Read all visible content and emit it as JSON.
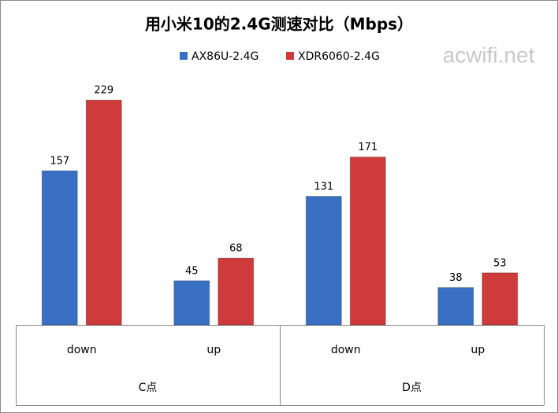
{
  "chart_data": {
    "type": "bar",
    "title": "用小米10的2.4G测速对比（Mbps）",
    "watermark": "acwifi.net",
    "categories": [
      "down",
      "up",
      "down",
      "up"
    ],
    "category_groups": [
      "C点",
      "D点"
    ],
    "series": [
      {
        "name": "AX86U-2.4G",
        "color": "#3a70c4",
        "values": [
          157,
          45,
          131,
          38
        ]
      },
      {
        "name": "XDR6060-2.4G",
        "color": "#cf3a3a",
        "values": [
          229,
          68,
          171,
          53
        ]
      }
    ],
    "ylim": [
      0,
      250
    ],
    "legend": "top"
  }
}
